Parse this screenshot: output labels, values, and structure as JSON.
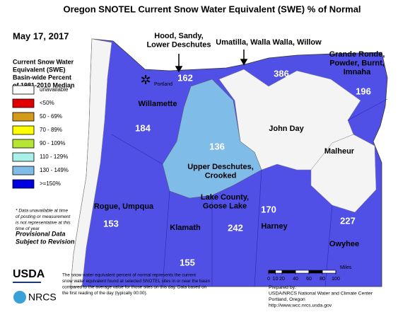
{
  "title": "Oregon SNOTEL Current Snow Water Equivalent (SWE) % of Normal",
  "date": "May 17, 2017",
  "legend": {
    "title": [
      "Current Snow Water",
      "Equivalent (SWE)",
      "Basin-wide Percent",
      "of 1981-2010 Median"
    ],
    "items": [
      {
        "label": "unavailable *",
        "color": "#ffffff"
      },
      {
        "label": "<50%",
        "color": "#e00000"
      },
      {
        "label": "50 - 69%",
        "color": "#d49a1a"
      },
      {
        "label": "70 - 89%",
        "color": "#ffff00"
      },
      {
        "label": "90 - 109%",
        "color": "#b4e632"
      },
      {
        "label": "110 - 129%",
        "color": "#a8f0e8"
      },
      {
        "label": "130 - 149%",
        "color": "#80bce8"
      },
      {
        "label": ">=150%",
        "color": "#0000e0"
      }
    ]
  },
  "note": [
    "* Data unavailable at time",
    "of posting or measurement",
    "is not representative at this",
    "time of year"
  ],
  "provisional": [
    "Provisional Data",
    "Subject to Revision"
  ],
  "regions": [
    {
      "label": [
        "Hood, Sandy,",
        "Lower Deschutes"
      ],
      "value": 162
    },
    {
      "label": [
        "Umatilla, Walla Walla, Willow"
      ],
      "value": 386
    },
    {
      "label": [
        "Grande Ronde,",
        "Powder, Burnt,",
        "Imnaha"
      ],
      "value": 196
    },
    {
      "label": [
        "Willamette"
      ],
      "value": 184
    },
    {
      "label": [
        "John Day"
      ]
    },
    {
      "label": [
        "Malheur"
      ]
    },
    {
      "label": [
        "Upper Deschutes,",
        "Crooked"
      ],
      "value": 136
    },
    {
      "label": [
        "Rogue, Umpqua"
      ],
      "value": 153
    },
    {
      "label": [
        "Klamath"
      ],
      "value": 155
    },
    {
      "label": [
        "Lake County,",
        "Goose Lake"
      ],
      "value": 242
    },
    {
      "label": [
        "Harney"
      ],
      "value": 170
    },
    {
      "label": [
        "Owyhee"
      ],
      "value": 227
    }
  ],
  "city": "Portland",
  "scale": {
    "ticks": [
      0,
      10,
      20,
      40,
      60,
      80,
      100
    ],
    "unit": "Miles"
  },
  "footnote": [
    "The snow water equivalent percent of normal represents the current",
    "snow water equivalent found at selected SNOTEL sites in or near the basin",
    "compared to the average value for those sites on this day. Data based on",
    "the first reading of the day (typically 00:00)."
  ],
  "prepared": [
    "Prepared by:",
    "USDA/NRCS National Water and Climate Center",
    "Portland, Oregon",
    "http://www.wcc.nrcs.usda.gov"
  ],
  "logos": [
    "USDA",
    "NRCS"
  ]
}
